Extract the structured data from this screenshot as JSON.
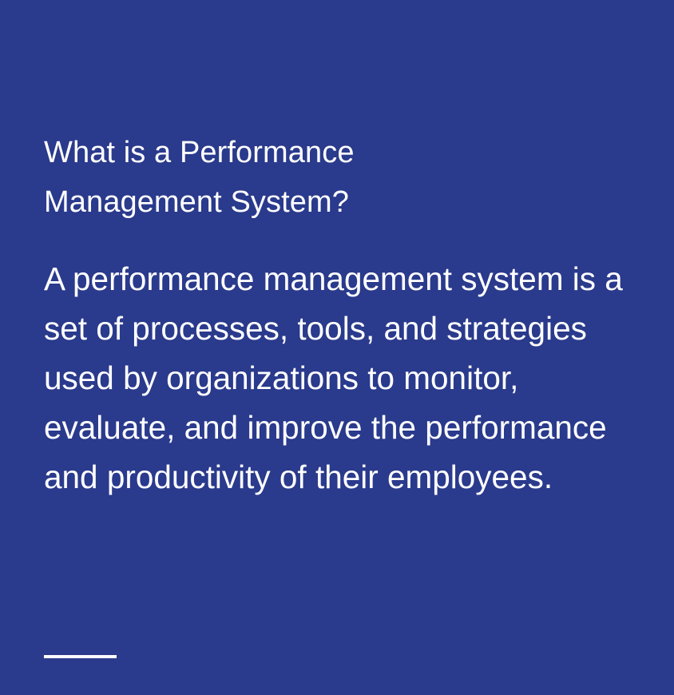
{
  "card": {
    "title": "What is a Performance Management System?",
    "body": "A performance management system is a set of processes, tools, and strategies used by organizations to monitor, evaluate, and improve the performance and productivity of their employees.",
    "colors": {
      "background": "#2a3a8c",
      "text": "#ffffff",
      "divider": "#ffffff"
    }
  }
}
